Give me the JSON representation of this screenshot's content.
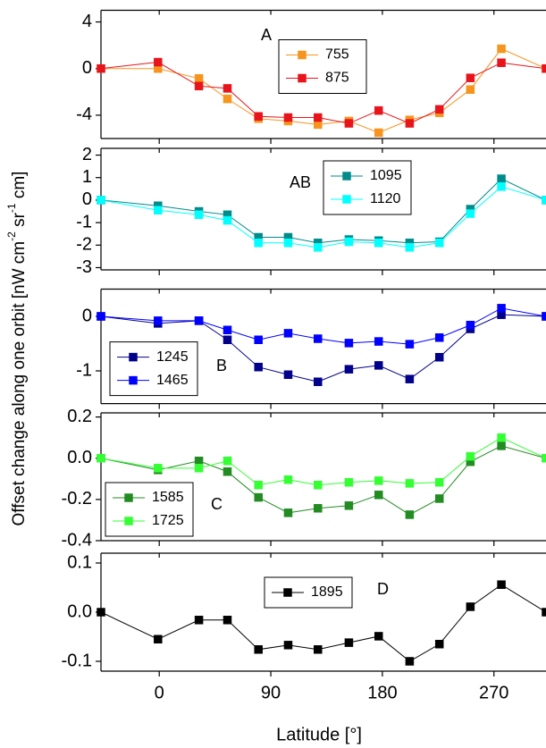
{
  "chart_data": [
    {
      "type": "line",
      "label": "A",
      "xlim": [
        -47,
        312
      ],
      "ylim": [
        -6,
        5
      ],
      "yticks": [
        4,
        0,
        -4
      ],
      "legend": "upper center",
      "x": [
        -47,
        -1,
        32,
        55,
        80,
        104,
        128,
        153,
        177,
        202,
        226,
        251,
        276,
        312
      ],
      "series": [
        {
          "name": "755",
          "color": "#f7941d",
          "values": [
            0,
            0,
            -0.85,
            -2.6,
            -4.3,
            -4.5,
            -4.8,
            -4.5,
            -5.5,
            -4.4,
            -3.8,
            -1.8,
            1.7,
            0
          ]
        },
        {
          "name": "875",
          "color": "#e8141b",
          "values": [
            0,
            0.55,
            -1.5,
            -1.7,
            -4.1,
            -4.2,
            -4.2,
            -4.7,
            -3.6,
            -4.7,
            -3.5,
            -0.8,
            0.5,
            0
          ]
        }
      ]
    },
    {
      "type": "line",
      "label": "AB",
      "xlim": [
        -47,
        312
      ],
      "ylim": [
        -3.1,
        2.3
      ],
      "yticks": [
        2,
        1,
        0,
        -1,
        -2,
        -3
      ],
      "legend": "upper center",
      "x": [
        -47,
        -1,
        32,
        55,
        80,
        104,
        128,
        153,
        177,
        202,
        226,
        251,
        276,
        312
      ],
      "series": [
        {
          "name": "1095",
          "color": "#008b8b",
          "values": [
            0,
            -0.25,
            -0.5,
            -0.65,
            -1.65,
            -1.65,
            -1.9,
            -1.75,
            -1.8,
            -1.9,
            -1.85,
            -0.4,
            0.95,
            0
          ]
        },
        {
          "name": "1120",
          "color": "#00ffff",
          "values": [
            0,
            -0.45,
            -0.65,
            -0.9,
            -1.9,
            -1.9,
            -2.1,
            -1.85,
            -1.9,
            -2.1,
            -1.9,
            -0.6,
            0.6,
            0
          ]
        }
      ]
    },
    {
      "type": "line",
      "label": "B",
      "xlim": [
        -47,
        312
      ],
      "ylim": [
        -1.6,
        0.5
      ],
      "yticks": [
        0,
        -1
      ],
      "legend": "lower left",
      "x": [
        -47,
        -1,
        32,
        55,
        80,
        104,
        128,
        153,
        177,
        202,
        226,
        251,
        276,
        312
      ],
      "series": [
        {
          "name": "1245",
          "color": "#00008b",
          "values": [
            0,
            -0.13,
            -0.08,
            -0.43,
            -0.93,
            -1.07,
            -1.2,
            -0.97,
            -0.9,
            -1.15,
            -0.75,
            -0.23,
            0.03,
            0
          ]
        },
        {
          "name": "1465",
          "color": "#0000ff",
          "values": [
            0,
            -0.08,
            -0.08,
            -0.25,
            -0.43,
            -0.31,
            -0.41,
            -0.49,
            -0.46,
            -0.51,
            -0.39,
            -0.16,
            0.15,
            0
          ]
        }
      ]
    },
    {
      "type": "line",
      "label": "C",
      "xlim": [
        -47,
        312
      ],
      "ylim": [
        -0.4,
        0.22
      ],
      "yticks": [
        0.2,
        {
          "value": 0,
          "label": "0.0"
        },
        -0.2,
        -0.4
      ],
      "legend": "lower left",
      "x": [
        -47,
        -1,
        32,
        55,
        80,
        104,
        128,
        153,
        177,
        202,
        226,
        251,
        276,
        312
      ],
      "series": [
        {
          "name": "1585",
          "color": "#228b22",
          "values": [
            0,
            -0.057,
            -0.013,
            -0.065,
            -0.19,
            -0.265,
            -0.243,
            -0.23,
            -0.178,
            -0.274,
            -0.196,
            -0.017,
            0.06,
            0
          ]
        },
        {
          "name": "1725",
          "color": "#33ff33",
          "values": [
            0,
            -0.048,
            -0.048,
            -0.013,
            -0.13,
            -0.104,
            -0.13,
            -0.117,
            -0.109,
            -0.122,
            -0.117,
            0.009,
            0.1,
            0
          ]
        }
      ]
    },
    {
      "type": "line",
      "label": "D",
      "xlim": [
        -47,
        312
      ],
      "ylim": [
        -0.12,
        0.12
      ],
      "yticks": [
        0.1,
        {
          "value": 0,
          "label": "0.0"
        },
        -0.1
      ],
      "legend": "upper center",
      "xticks": [
        0,
        90,
        180,
        270
      ],
      "x": [
        -47,
        -1,
        32,
        55,
        80,
        104,
        128,
        153,
        177,
        202,
        226,
        251,
        276,
        312
      ],
      "series": [
        {
          "name": "1895",
          "color": "#000000",
          "values": [
            0,
            -0.055,
            -0.016,
            -0.016,
            -0.076,
            -0.067,
            -0.076,
            -0.062,
            -0.049,
            -0.1,
            -0.065,
            0.011,
            0.056,
            0
          ]
        }
      ]
    }
  ],
  "y_axis_label": [
    "Offset change along one orbit [nW cm",
    "-2",
    " sr",
    "-1",
    " cm]"
  ],
  "x_axis_label": "Latitude [°]"
}
